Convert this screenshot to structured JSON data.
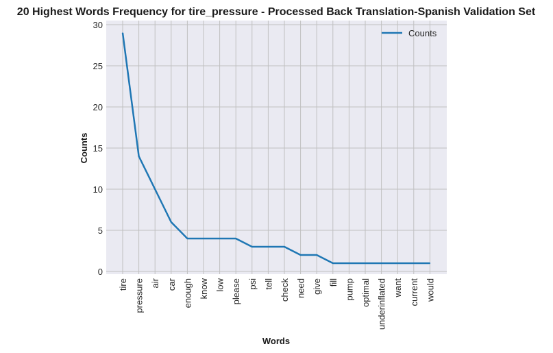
{
  "chart_data": {
    "type": "line",
    "title": "20 Highest Words Frequency for tire_pressure - Processed Back Translation-Spanish Validation Set",
    "xlabel": "Words",
    "ylabel": "Counts",
    "categories": [
      "tire",
      "pressure",
      "air",
      "car",
      "enough",
      "know",
      "low",
      "please",
      "psi",
      "tell",
      "check",
      "need",
      "give",
      "fill",
      "pump",
      "optimal",
      "underinflated",
      "want",
      "current",
      "would"
    ],
    "series": [
      {
        "name": "Counts",
        "values": [
          29,
          14,
          10,
          6,
          4,
          4,
          4,
          4,
          3,
          3,
          3,
          2,
          2,
          1,
          1,
          1,
          1,
          1,
          1,
          1
        ],
        "color": "#1f77b4"
      }
    ],
    "ylim": [
      0,
      30
    ],
    "yticks": [
      0,
      5,
      10,
      15,
      20,
      25,
      30
    ],
    "grid": true,
    "legend": "top-right",
    "background": "#eaeaf2",
    "grid_color": "#c0c0c0"
  }
}
